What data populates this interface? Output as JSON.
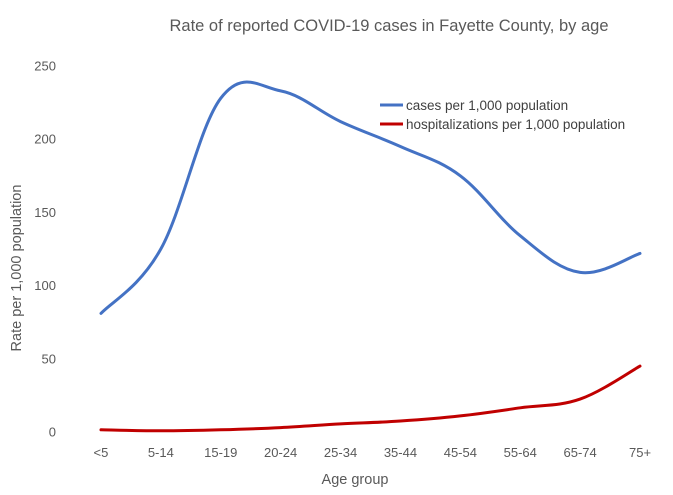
{
  "chart_data": {
    "type": "line",
    "title": "Rate of reported COVID-19 cases in Fayette County, by age",
    "xlabel": "Age group",
    "ylabel": "Rate per 1,000 population",
    "ylim": [
      0,
      250
    ],
    "yticks": [
      "0",
      "50",
      "100",
      "150",
      "200",
      "250"
    ],
    "categories": [
      "<5",
      "5-14",
      "15-19",
      "20-24",
      "25-34",
      "35-44",
      "45-54",
      "55-64",
      "65-74",
      "75+"
    ],
    "grid": false,
    "legend_position": "top-right",
    "series": [
      {
        "name": "cases per 1,000 population",
        "color": "#4472C4",
        "values": [
          81,
          125,
          228,
          233,
          212,
          195,
          175,
          134,
          109,
          122
        ]
      },
      {
        "name": "hospitalizations per 1,000 population",
        "color": "#C00000",
        "values": [
          1.5,
          0.8,
          1.5,
          3,
          5.5,
          7.5,
          11,
          16.5,
          22.5,
          45
        ]
      }
    ]
  }
}
